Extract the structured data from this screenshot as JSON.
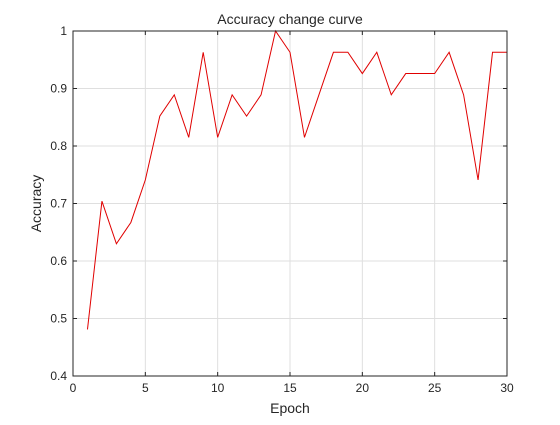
{
  "chart_data": {
    "type": "line",
    "title": "Accuracy change curve",
    "xlabel": "Epoch",
    "ylabel": "Accuracy",
    "xlim": [
      0,
      30
    ],
    "ylim": [
      0.4,
      1
    ],
    "xticks": [
      0,
      5,
      10,
      15,
      20,
      25,
      30
    ],
    "yticks": [
      0.4,
      0.5,
      0.6,
      0.7,
      0.8,
      0.9,
      1
    ],
    "xtick_labels": [
      "0",
      "5",
      "10",
      "15",
      "20",
      "25",
      "30"
    ],
    "ytick_labels": [
      "0.4",
      "0.5",
      "0.6",
      "0.7",
      "0.8",
      "0.9",
      "1"
    ],
    "grid": true,
    "series": [
      {
        "color": "#e00000",
        "x": [
          1,
          2,
          3,
          4,
          5,
          6,
          7,
          8,
          9,
          10,
          11,
          12,
          13,
          14,
          15,
          16,
          17,
          18,
          19,
          20,
          21,
          22,
          23,
          24,
          25,
          26,
          27,
          28,
          29,
          30
        ],
        "y": [
          0.481,
          0.704,
          0.63,
          0.667,
          0.741,
          0.852,
          0.889,
          0.815,
          0.963,
          0.815,
          0.889,
          0.852,
          0.889,
          1.0,
          0.963,
          0.815,
          0.889,
          0.963,
          0.963,
          0.926,
          0.963,
          0.889,
          0.926,
          0.926,
          0.926,
          0.963,
          0.889,
          0.741,
          0.963,
          0.963
        ]
      }
    ]
  }
}
